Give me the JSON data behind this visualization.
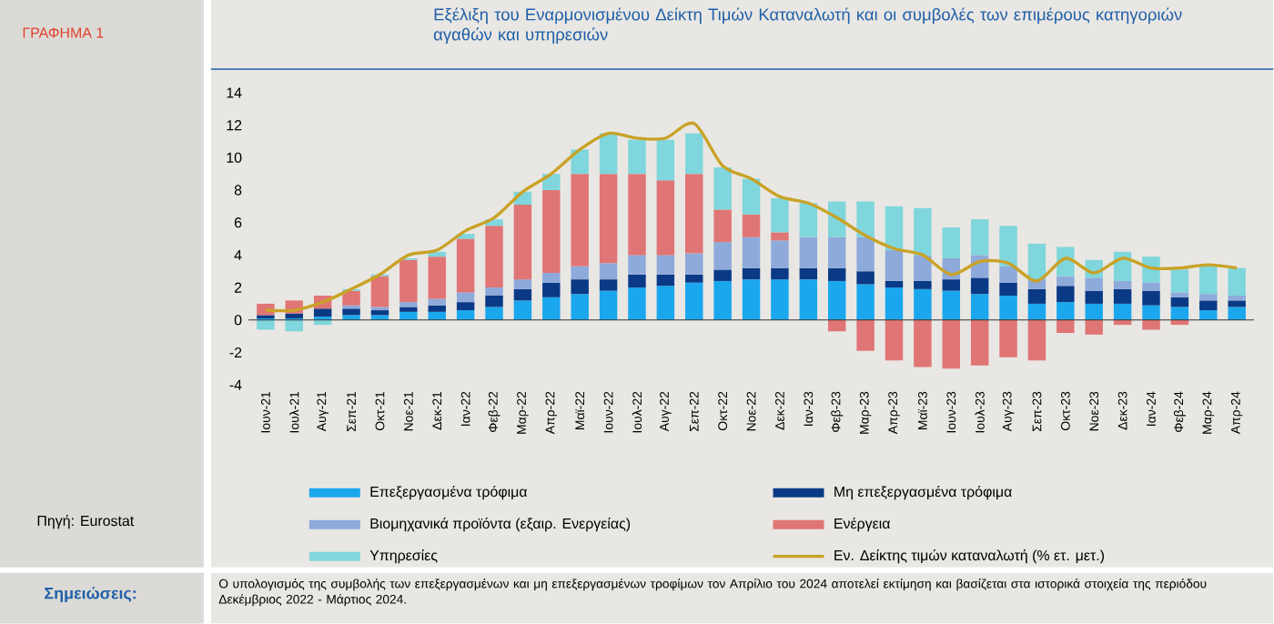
{
  "chart_data": {
    "type": "bar",
    "stacked": true,
    "title": "Εξέλιξη του Εναρμονισμένου Δείκτη Τιμών Καταναλωτή και οι συμβολές των επιμέρους κατηγοριών αγαθών και υπηρεσιών",
    "annotations": [
      "ΓΡΑΦΗΜΑ 1",
      "Πηγή: Eurostat",
      "Σημειώσεις:",
      "Ο υπολογισμός της συμβολής των επεξεργασμένων και μη επεξεργασμένων τροφίμων τον Απρίλιο του 2024 αποτελεί εκτίμηση και βασίζεται στα ιστορικά στοιχεία της περιόδου Δεκέμβριος 2022 - Μάρτιος 2024."
    ],
    "categories": [
      "Ιουν-21",
      "Ιουλ-21",
      "Αυγ-21",
      "Σεπ-21",
      "Οκτ-21",
      "Νοε-21",
      "Δεκ-21",
      "Ιαν-22",
      "Φεβ-22",
      "Μαρ-22",
      "Απρ-22",
      "Μαϊ-22",
      "Ιουν-22",
      "Ιουλ-22",
      "Αυγ-22",
      "Σεπ-22",
      "Οκτ-22",
      "Νοε-22",
      "Δεκ-22",
      "Ιαν-23",
      "Φεβ-23",
      "Μαρ-23",
      "Απρ-23",
      "Μαϊ-23",
      "Ιουν-23",
      "Ιουλ-23",
      "Αυγ-23",
      "Σεπ-23",
      "Οκτ-23",
      "Νοε-23",
      "Δεκ-23",
      "Ιαν-24",
      "Φεβ-24",
      "Μαρ-24",
      "Απρ-24"
    ],
    "ylim": [
      -4,
      14
    ],
    "yticks": [
      -4,
      -2,
      0,
      2,
      4,
      6,
      8,
      10,
      12,
      14
    ],
    "legend": "bottom",
    "series": [
      {
        "name": "Επεξεργασμένα τρόφιμα",
        "color": "#1aa7ee",
        "values": [
          0.1,
          0.1,
          0.2,
          0.3,
          0.3,
          0.5,
          0.5,
          0.6,
          0.8,
          1.2,
          1.4,
          1.6,
          1.8,
          2.0,
          2.1,
          2.3,
          2.4,
          2.5,
          2.5,
          2.5,
          2.4,
          2.2,
          2.0,
          1.9,
          1.8,
          1.6,
          1.5,
          1.0,
          1.1,
          1.0,
          1.0,
          0.9,
          0.8,
          0.6,
          0.8
        ]
      },
      {
        "name": "Μη επεξεργασμένα τρόφιμα",
        "color": "#0a3a86",
        "values": [
          0.2,
          0.3,
          0.5,
          0.4,
          0.3,
          0.3,
          0.4,
          0.5,
          0.7,
          0.7,
          0.9,
          0.9,
          0.7,
          0.8,
          0.7,
          0.5,
          0.7,
          0.7,
          0.7,
          0.7,
          0.8,
          0.8,
          0.4,
          0.5,
          0.7,
          1.0,
          0.8,
          0.9,
          1.0,
          0.8,
          0.9,
          0.9,
          0.6,
          0.6,
          0.4
        ]
      },
      {
        "name": "Βιομηχανικά προϊόντα (εξαιρ. Ενεργείας)",
        "color": "#8eaadb",
        "values": [
          null,
          null,
          null,
          0.2,
          0.2,
          0.3,
          0.4,
          0.6,
          0.5,
          0.6,
          0.6,
          0.8,
          1.0,
          1.2,
          1.2,
          1.3,
          1.7,
          1.9,
          1.7,
          1.9,
          1.9,
          2.1,
          1.9,
          1.6,
          1.3,
          1.4,
          1.0,
          0.6,
          0.6,
          0.8,
          0.5,
          0.5,
          0.3,
          0.4,
          0.3
        ]
      },
      {
        "name": "Ενέργεια",
        "color": "#e07575",
        "values": [
          0.7,
          0.8,
          0.8,
          0.9,
          1.9,
          2.6,
          2.6,
          3.3,
          3.8,
          4.6,
          5.1,
          5.7,
          5.5,
          5.0,
          4.6,
          4.9,
          2.0,
          1.4,
          0.5,
          0,
          -0.7,
          -1.9,
          -2.5,
          -2.9,
          -3.0,
          -2.8,
          -2.3,
          -2.5,
          -0.8,
          -0.9,
          -0.3,
          -0.6,
          -0.3,
          0,
          0
        ]
      },
      {
        "name": "Υπηρεσίες",
        "color": "#7fd6dc",
        "values": [
          -0.6,
          -0.7,
          -0.3,
          0.1,
          0.1,
          0.1,
          0.3,
          0.3,
          0.4,
          0.8,
          1.0,
          1.5,
          2.5,
          2.1,
          2.5,
          2.5,
          2.6,
          2.2,
          2.1,
          2.1,
          2.2,
          2.2,
          2.7,
          2.9,
          1.9,
          2.2,
          2.5,
          2.2,
          1.8,
          1.1,
          1.8,
          1.6,
          1.4,
          1.8,
          1.7
        ]
      },
      {
        "name": "Εν. Δείκτης τιμών καταναλωτή (% ετ. μετ.)",
        "type": "line",
        "color": "#c9a227",
        "values": [
          0.6,
          0.6,
          1.1,
          1.9,
          2.8,
          4.0,
          4.3,
          5.5,
          6.3,
          7.9,
          9.0,
          10.5,
          11.5,
          11.2,
          11.2,
          12.1,
          9.5,
          8.7,
          7.6,
          7.2,
          6.3,
          5.2,
          4.4,
          4.0,
          2.8,
          3.6,
          3.5,
          2.4,
          3.8,
          2.9,
          3.8,
          3.2,
          3.2,
          3.4,
          3.2
        ]
      }
    ]
  }
}
